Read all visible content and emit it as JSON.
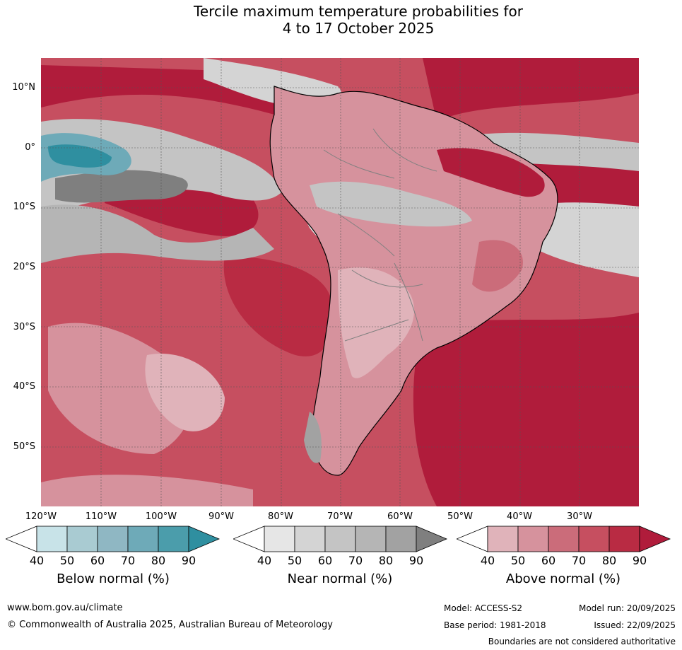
{
  "title": {
    "line1": "Tercile maximum temperature probabilities for",
    "line2": "4 to 17 October 2025"
  },
  "map": {
    "latitude_labels": [
      "10°N",
      "0°",
      "10°S",
      "20°S",
      "30°S",
      "40°S",
      "50°S"
    ],
    "longitude_labels": [
      "120°W",
      "110°W",
      "100°W",
      "90°W",
      "80°W",
      "70°W",
      "60°W",
      "50°W",
      "40°W",
      "30°W"
    ],
    "colors": {
      "above": [
        "#ffffff",
        "#e0b3ba",
        "#d6929d",
        "#cb6c7a",
        "#c64f60",
        "#b92b43",
        "#b01c3b"
      ],
      "near": [
        "#ffffff",
        "#e6e6e6",
        "#d4d4d4",
        "#c4c4c4",
        "#b5b5b5",
        "#a2a2a2",
        "#7f7f7f"
      ],
      "below": [
        "#ffffff",
        "#c8e3e8",
        "#a9cbd2",
        "#8fb7c3",
        "#6eaab8",
        "#4b9dab",
        "#2f8fa0"
      ],
      "coast": "#000000",
      "borders": "#808080"
    }
  },
  "colorbars": [
    {
      "name": "below",
      "title": "Below normal (%)",
      "ticks": [
        "40",
        "50",
        "60",
        "70",
        "80",
        "90"
      ]
    },
    {
      "name": "near",
      "title": "Near normal (%)",
      "ticks": [
        "40",
        "50",
        "60",
        "70",
        "80",
        "90"
      ]
    },
    {
      "name": "above",
      "title": "Above normal (%)",
      "ticks": [
        "40",
        "50",
        "60",
        "70",
        "80",
        "90"
      ]
    }
  ],
  "footer": {
    "website": "www.bom.gov.au/climate",
    "copyright": "© Commonwealth of Australia 2025, Australian Bureau of Meteorology",
    "model": "Model: ACCESS-S2",
    "base_period": "Base period: 1981-2018",
    "model_run": "Model run: 20/09/2025",
    "issued": "Issued: 22/09/2025",
    "disclaimer": "Boundaries are not considered authoritative"
  }
}
